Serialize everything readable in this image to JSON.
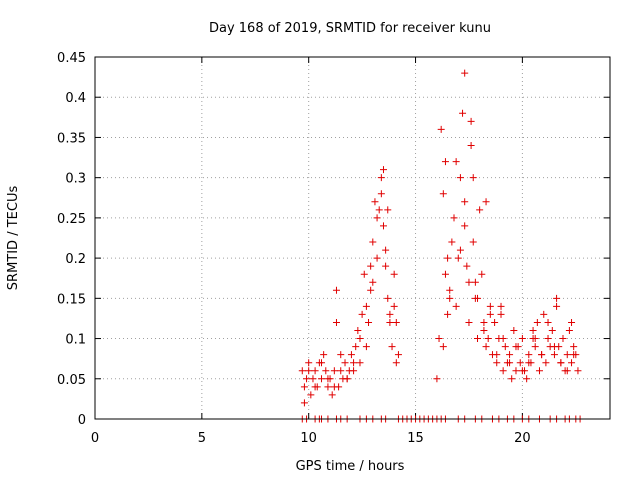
{
  "chart_data": {
    "type": "scatter",
    "title": "Day 168 of 2019, SRMTID for receiver kunu",
    "xlabel": "GPS time / hours",
    "ylabel": "SRMTID / TECUs",
    "xlim": [
      0,
      24.1
    ],
    "ylim": [
      0,
      0.45
    ],
    "xticks": [
      0,
      5,
      10,
      15,
      20
    ],
    "xtick_labels": [
      "0",
      "5",
      "10",
      "15",
      "20"
    ],
    "yticks": [
      0,
      0.05,
      0.1,
      0.15,
      0.2,
      0.25,
      0.3,
      0.35,
      0.4,
      0.45
    ],
    "ytick_labels": [
      "0",
      "0.05",
      "0.1",
      "0.15",
      "0.2",
      "0.25",
      "0.3",
      "0.35",
      "0.4",
      "0.45"
    ],
    "grid": true,
    "marker": "plus",
    "color": "#e00000",
    "series": [
      {
        "name": "SRMTID",
        "x": [
          9.7,
          9.8,
          9.9,
          10.0,
          10.1,
          10.2,
          10.3,
          10.4,
          10.5,
          10.6,
          10.7,
          10.8,
          10.9,
          11.0,
          11.1,
          11.2,
          11.3,
          11.4,
          11.5,
          11.6,
          11.7,
          11.8,
          11.9,
          12.0,
          12.1,
          12.2,
          12.3,
          12.4,
          12.5,
          12.6,
          12.7,
          12.8,
          12.9,
          13.0,
          13.1,
          13.2,
          13.3,
          13.4,
          13.5,
          13.6,
          13.7,
          13.8,
          13.9,
          14.0,
          14.1,
          14.2,
          16.0,
          16.1,
          16.2,
          16.3,
          16.4,
          16.5,
          16.6,
          16.7,
          16.8,
          16.9,
          17.0,
          17.1,
          17.2,
          17.3,
          17.4,
          17.5,
          17.6,
          17.7,
          17.8,
          17.9,
          18.0,
          18.1,
          18.2,
          18.3,
          18.4,
          18.5,
          18.6,
          18.7,
          18.8,
          18.9,
          19.0,
          19.1,
          19.2,
          19.3,
          19.4,
          19.5,
          19.6,
          19.7,
          19.8,
          19.9,
          20.0,
          20.1,
          20.2,
          20.3,
          20.4,
          20.5,
          20.6,
          20.7,
          20.8,
          20.9,
          21.0,
          21.1,
          21.2,
          21.3,
          21.4,
          21.5,
          21.6,
          21.7,
          21.8,
          21.9,
          22.0,
          22.1,
          22.2,
          22.3,
          22.4,
          22.5,
          22.6,
          9.8,
          10.0,
          10.3,
          10.6,
          10.9,
          11.2,
          11.5,
          11.8,
          12.1,
          12.4,
          12.7,
          13.0,
          13.2,
          13.4,
          13.6,
          13.8,
          14.0,
          16.3,
          16.6,
          16.9,
          17.1,
          17.3,
          17.5,
          17.7,
          17.9,
          18.2,
          18.5,
          18.8,
          19.1,
          19.4,
          19.7,
          20.0,
          20.3,
          20.6,
          20.9,
          21.2,
          21.5,
          21.8,
          22.1,
          22.4,
          13.5,
          13.7,
          16.4,
          17.3,
          17.6,
          16.5,
          17.8,
          18.3,
          11.3,
          12.9,
          14.1,
          19.0,
          20.5,
          21.6,
          22.3
        ],
        "y": [
          0.06,
          0.04,
          0.05,
          0.07,
          0.03,
          0.05,
          0.06,
          0.04,
          0.07,
          0.05,
          0.08,
          0.06,
          0.04,
          0.05,
          0.03,
          0.06,
          0.12,
          0.04,
          0.06,
          0.05,
          0.07,
          0.05,
          0.06,
          0.08,
          0.07,
          0.09,
          0.11,
          0.1,
          0.13,
          0.18,
          0.14,
          0.12,
          0.16,
          0.22,
          0.27,
          0.2,
          0.26,
          0.3,
          0.24,
          0.19,
          0.15,
          0.13,
          0.09,
          0.18,
          0.12,
          0.08,
          0.05,
          0.1,
          0.36,
          0.28,
          0.18,
          0.13,
          0.16,
          0.22,
          0.25,
          0.14,
          0.2,
          0.3,
          0.38,
          0.27,
          0.19,
          0.12,
          0.34,
          0.22,
          0.15,
          0.1,
          0.26,
          0.18,
          0.12,
          0.09,
          0.1,
          0.14,
          0.08,
          0.12,
          0.07,
          0.1,
          0.13,
          0.06,
          0.09,
          0.07,
          0.08,
          0.05,
          0.11,
          0.06,
          0.09,
          0.07,
          0.1,
          0.06,
          0.05,
          0.08,
          0.07,
          0.1,
          0.09,
          0.12,
          0.06,
          0.08,
          0.13,
          0.07,
          0.1,
          0.09,
          0.11,
          0.08,
          0.15,
          0.09,
          0.07,
          0.1,
          0.06,
          0.08,
          0.11,
          0.07,
          0.09,
          0.08,
          0.06,
          0.02,
          0.06,
          0.04,
          0.07,
          0.05,
          0.04,
          0.08,
          0.05,
          0.06,
          0.07,
          0.09,
          0.17,
          0.25,
          0.28,
          0.21,
          0.12,
          0.14,
          0.09,
          0.15,
          0.32,
          0.21,
          0.24,
          0.17,
          0.3,
          0.15,
          0.11,
          0.13,
          0.08,
          0.1,
          0.07,
          0.09,
          0.06,
          0.07,
          0.1,
          0.08,
          0.12,
          0.09,
          0.07,
          0.06,
          0.08,
          0.31,
          0.26,
          0.32,
          0.43,
          0.37,
          0.2,
          0.17,
          0.27,
          0.16,
          0.19,
          0.07,
          0.14,
          0.11,
          0.14,
          0.12
        ],
        "zero_x": [
          9.7,
          9.9,
          10.3,
          10.5,
          10.6,
          10.9,
          11.3,
          11.5,
          11.8,
          12.4,
          12.7,
          13.0,
          13.4,
          13.6,
          14.2,
          14.4,
          14.6,
          14.8,
          15.0,
          15.2,
          15.4,
          15.6,
          15.8,
          16.0,
          16.2,
          16.4,
          17.0,
          17.3,
          17.8,
          18.1,
          18.6,
          18.9,
          19.3,
          19.6,
          20.0,
          20.3,
          20.8,
          21.3,
          21.6,
          22.0,
          22.2,
          22.5,
          22.7
        ]
      }
    ]
  }
}
